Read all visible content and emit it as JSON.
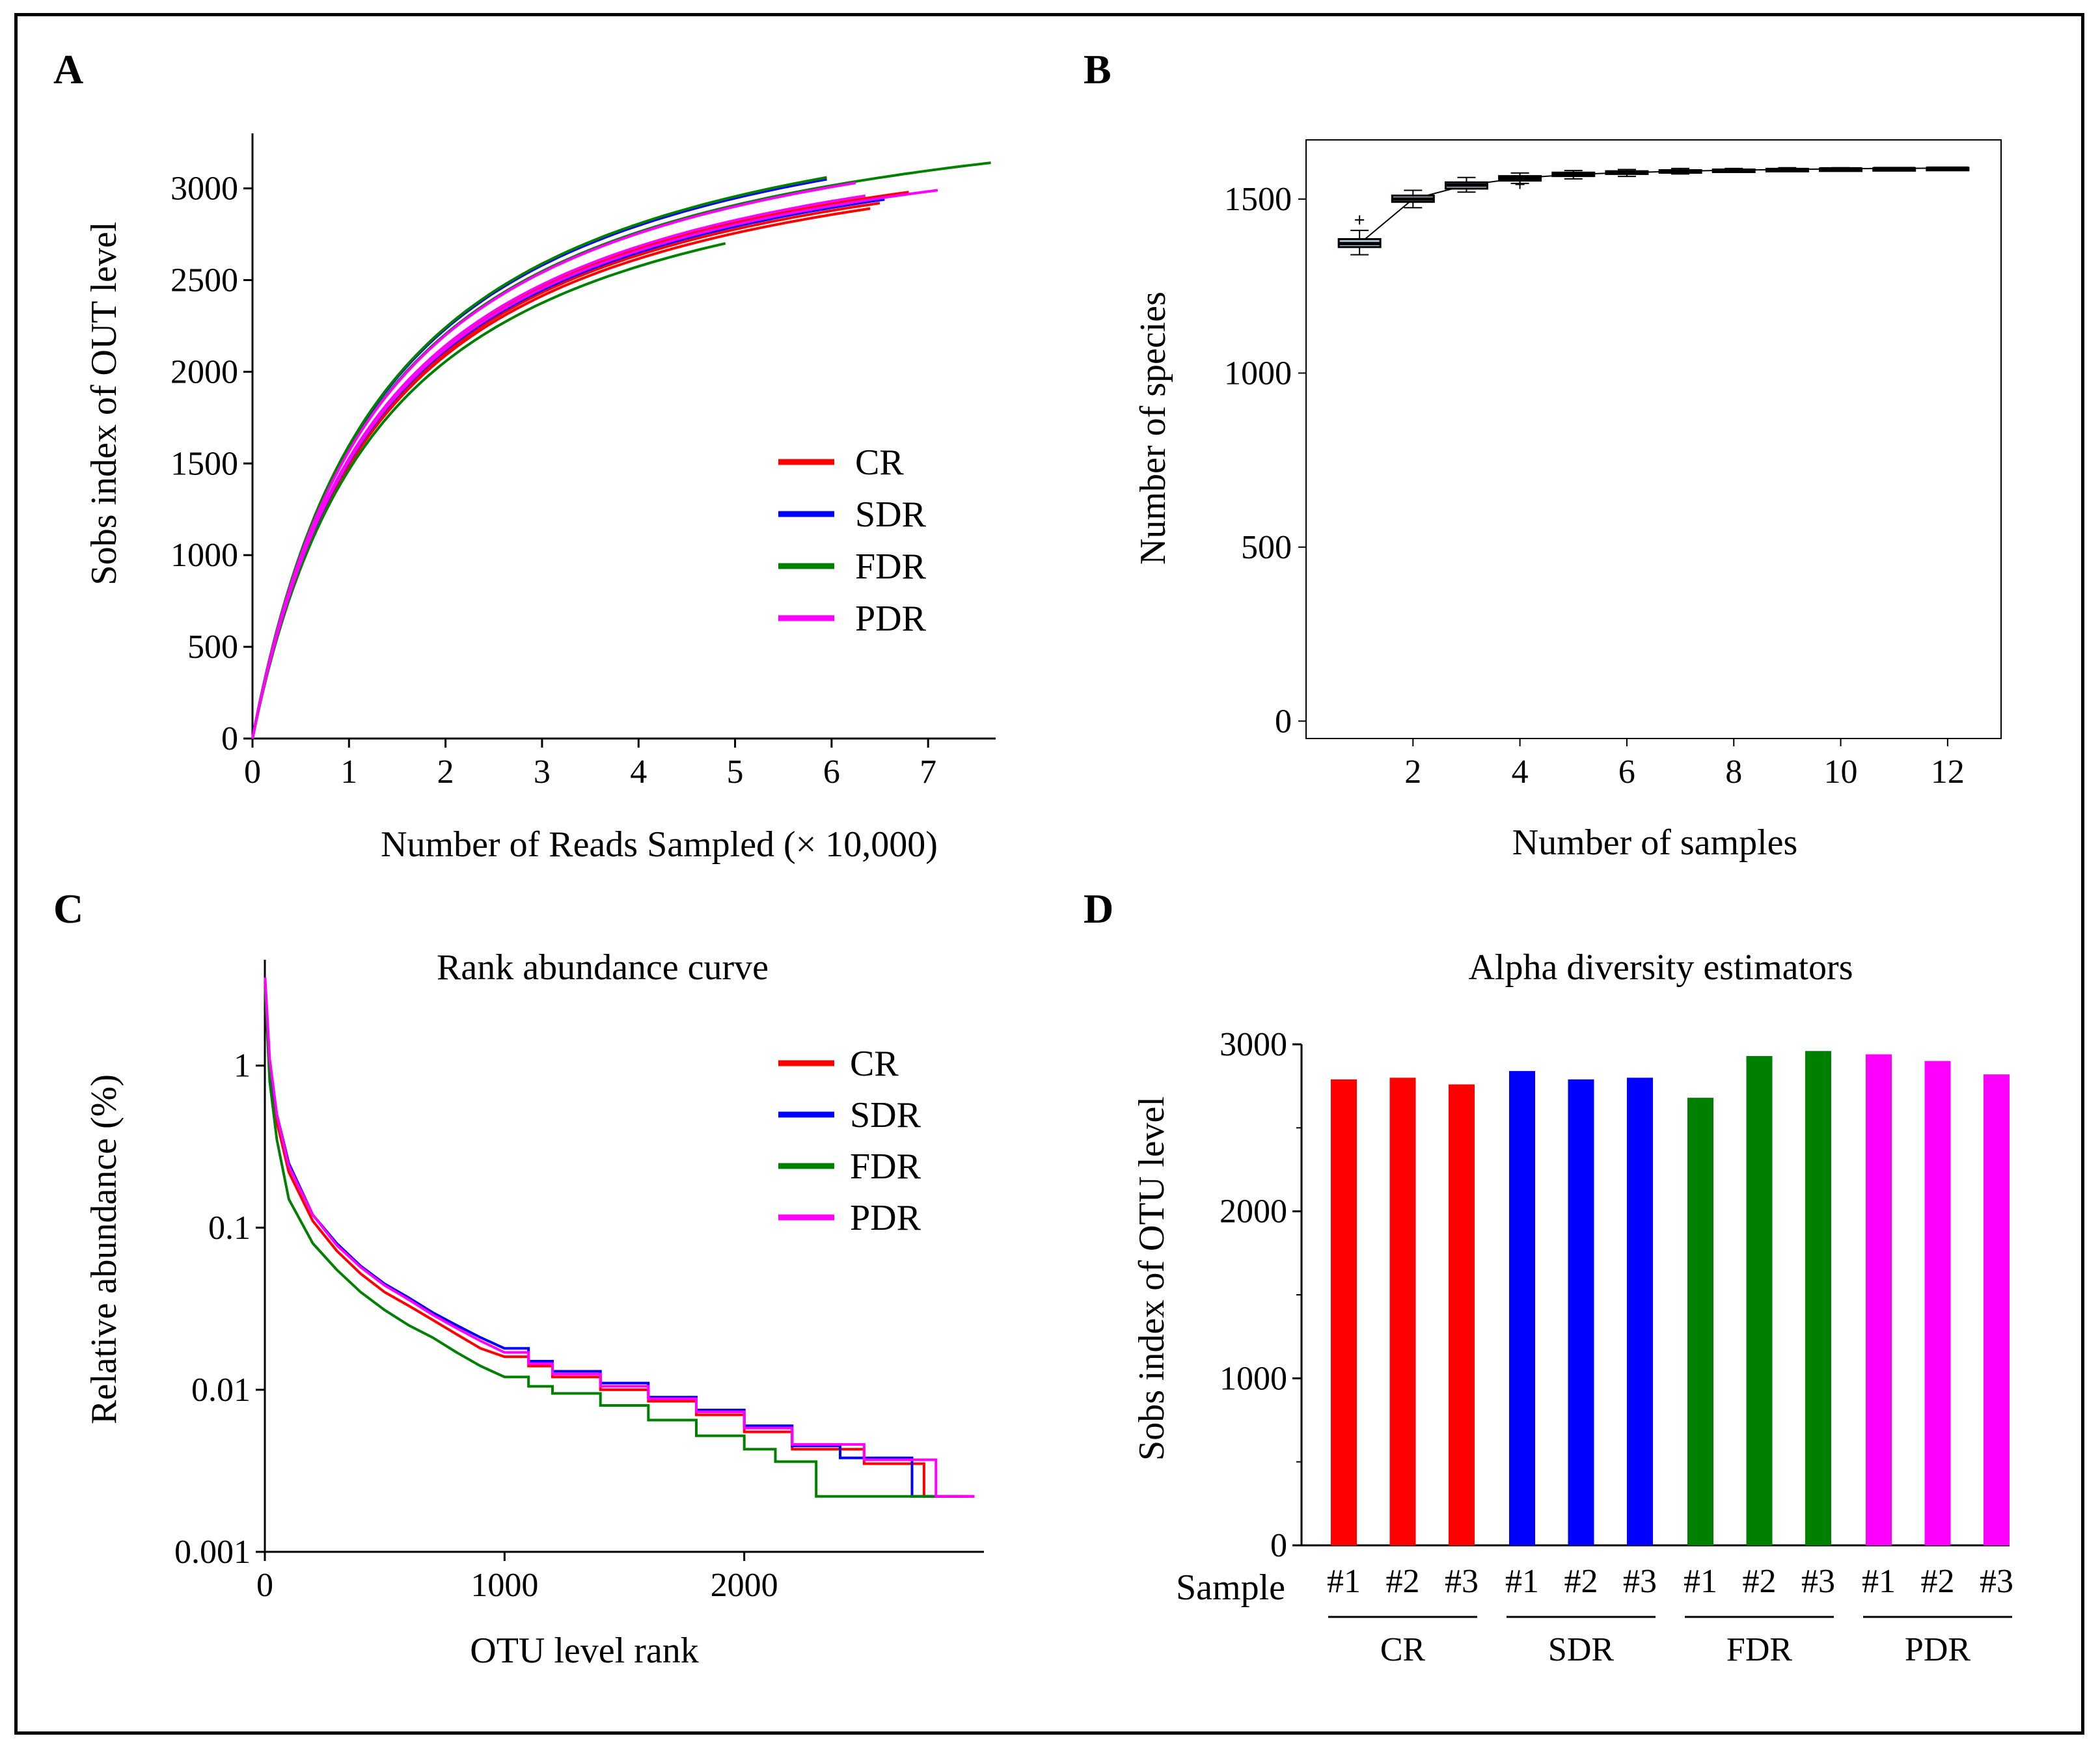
{
  "colors": {
    "CR": "#ff0000",
    "SDR": "#0000ff",
    "FDR": "#008000",
    "PDR": "#ff00ff",
    "box": "#a9c4dc"
  },
  "panels": {
    "A": {
      "letter": "A"
    },
    "B": {
      "letter": "B"
    },
    "C": {
      "letter": "C"
    },
    "D": {
      "letter": "D"
    }
  },
  "chart_data": [
    {
      "id": "A",
      "type": "line",
      "title": "",
      "xlabel": "Number of Reads Sampled (× 10,000)",
      "ylabel": "Sobs index of OUT level",
      "xlim": [
        0,
        7.7
      ],
      "ylim": [
        0,
        3300
      ],
      "xticks": [
        0,
        1,
        2,
        3,
        4,
        5,
        6,
        7
      ],
      "yticks": [
        0,
        500,
        1000,
        1500,
        2000,
        2500,
        3000
      ],
      "legend": [
        "CR",
        "SDR",
        "FDR",
        "PDR"
      ],
      "legend_position": "center-right",
      "series": [
        {
          "name": "CR",
          "group": "CR",
          "end_x": 6.4,
          "end_y": 2890
        },
        {
          "name": "CR",
          "group": "CR",
          "end_x": 6.5,
          "end_y": 2920
        },
        {
          "name": "CR",
          "group": "CR",
          "end_x": 6.8,
          "end_y": 2980
        },
        {
          "name": "SDR",
          "group": "SDR",
          "end_x": 6.4,
          "end_y": 2930
        },
        {
          "name": "SDR",
          "group": "SDR",
          "end_x": 6.55,
          "end_y": 2940
        },
        {
          "name": "SDR",
          "group": "SDR",
          "end_x": 5.95,
          "end_y": 3050
        },
        {
          "name": "FDR",
          "group": "FDR",
          "end_x": 4.9,
          "end_y": 2700
        },
        {
          "name": "FDR",
          "group": "FDR",
          "end_x": 7.65,
          "end_y": 3140
        },
        {
          "name": "FDR",
          "group": "FDR",
          "end_x": 5.95,
          "end_y": 3060
        },
        {
          "name": "PDR",
          "group": "PDR",
          "end_x": 7.1,
          "end_y": 2990
        },
        {
          "name": "PDR",
          "group": "PDR",
          "end_x": 6.25,
          "end_y": 3030
        },
        {
          "name": "PDR",
          "group": "PDR",
          "end_x": 6.35,
          "end_y": 2960
        }
      ]
    },
    {
      "id": "B",
      "type": "box",
      "title": "",
      "xlabel": "Number of samples",
      "ylabel": "Number of species",
      "xlim": [
        0,
        13
      ],
      "ylim": [
        -50,
        1670
      ],
      "xticks": [
        2,
        4,
        6,
        8,
        10,
        12
      ],
      "yticks": [
        0,
        500,
        1000,
        1500
      ],
      "boxes": [
        {
          "n": 1,
          "min": 1340,
          "q1": 1362,
          "median": 1372,
          "q3": 1385,
          "max": 1410,
          "outliers": [
            1440
          ]
        },
        {
          "n": 2,
          "min": 1475,
          "q1": 1492,
          "median": 1500,
          "q3": 1510,
          "max": 1525,
          "outliers": []
        },
        {
          "n": 3,
          "min": 1520,
          "q1": 1530,
          "median": 1540,
          "q3": 1548,
          "max": 1562,
          "outliers": []
        },
        {
          "n": 4,
          "min": 1545,
          "q1": 1553,
          "median": 1560,
          "q3": 1566,
          "max": 1575,
          "outliers": [
            1542
          ]
        },
        {
          "n": 5,
          "min": 1558,
          "q1": 1566,
          "median": 1571,
          "q3": 1576,
          "max": 1582,
          "outliers": []
        },
        {
          "n": 6,
          "min": 1565,
          "q1": 1572,
          "median": 1576,
          "q3": 1580,
          "max": 1585,
          "outliers": []
        },
        {
          "n": 7,
          "min": 1572,
          "q1": 1577,
          "median": 1580,
          "q3": 1583,
          "max": 1588,
          "outliers": []
        },
        {
          "n": 8,
          "min": 1578,
          "q1": 1581,
          "median": 1583,
          "q3": 1585,
          "max": 1588,
          "outliers": []
        },
        {
          "n": 9,
          "min": 1581,
          "q1": 1583,
          "median": 1585,
          "q3": 1587,
          "max": 1590,
          "outliers": []
        },
        {
          "n": 10,
          "min": 1584,
          "q1": 1586,
          "median": 1587,
          "q3": 1588,
          "max": 1590,
          "outliers": []
        },
        {
          "n": 11,
          "min": 1586,
          "q1": 1587,
          "median": 1588,
          "q3": 1589,
          "max": 1590,
          "outliers": []
        },
        {
          "n": 12,
          "min": 1588,
          "q1": 1588,
          "median": 1589,
          "q3": 1590,
          "max": 1590,
          "outliers": []
        }
      ]
    },
    {
      "id": "C",
      "type": "line",
      "title": "Rank abundance curve",
      "xlabel": "OTU level rank",
      "ylabel": "Relative abundance (%)",
      "yscale": "log",
      "xlim": [
        0,
        3000
      ],
      "ylim": [
        0.001,
        4.5
      ],
      "xticks": [
        0,
        1000,
        2000
      ],
      "yticks": [
        0.001,
        0.01,
        0.1,
        1
      ],
      "ytick_labels": [
        "0.001",
        "0.01",
        "0.1",
        "1"
      ],
      "legend": [
        "CR",
        "SDR",
        "FDR",
        "PDR"
      ],
      "legend_position": "top-right",
      "series": [
        {
          "name": "CR",
          "points": [
            [
              1,
              3.2
            ],
            [
              20,
              1.0
            ],
            [
              50,
              0.45
            ],
            [
              100,
              0.22
            ],
            [
              200,
              0.11
            ],
            [
              300,
              0.072
            ],
            [
              400,
              0.052
            ],
            [
              500,
              0.04
            ],
            [
              600,
              0.033
            ],
            [
              700,
              0.027
            ],
            [
              800,
              0.022
            ],
            [
              900,
              0.018
            ],
            [
              1000,
              0.016
            ],
            [
              1100,
              0.014
            ],
            [
              1200,
              0.012
            ],
            [
              1400,
              0.01
            ],
            [
              1600,
              0.0085
            ],
            [
              1800,
              0.007
            ],
            [
              2000,
              0.0055
            ],
            [
              2200,
              0.0043
            ],
            [
              2500,
              0.0035
            ],
            [
              2750,
              0.0022
            ],
            [
              2940,
              0.0022
            ]
          ]
        },
        {
          "name": "SDR",
          "points": [
            [
              1,
              3.0
            ],
            [
              20,
              1.0
            ],
            [
              50,
              0.5
            ],
            [
              100,
              0.25
            ],
            [
              200,
              0.12
            ],
            [
              300,
              0.08
            ],
            [
              400,
              0.058
            ],
            [
              500,
              0.045
            ],
            [
              600,
              0.037
            ],
            [
              700,
              0.03
            ],
            [
              800,
              0.025
            ],
            [
              900,
              0.021
            ],
            [
              1000,
              0.018
            ],
            [
              1100,
              0.015
            ],
            [
              1200,
              0.013
            ],
            [
              1400,
              0.011
            ],
            [
              1600,
              0.009
            ],
            [
              1800,
              0.0075
            ],
            [
              2000,
              0.006
            ],
            [
              2200,
              0.0045
            ],
            [
              2400,
              0.0038
            ],
            [
              2700,
              0.0022
            ],
            [
              2960,
              0.0022
            ]
          ]
        },
        {
          "name": "FDR",
          "points": [
            [
              1,
              3.0
            ],
            [
              20,
              0.8
            ],
            [
              50,
              0.35
            ],
            [
              100,
              0.15
            ],
            [
              200,
              0.08
            ],
            [
              300,
              0.055
            ],
            [
              400,
              0.04
            ],
            [
              500,
              0.031
            ],
            [
              600,
              0.025
            ],
            [
              700,
              0.021
            ],
            [
              800,
              0.017
            ],
            [
              900,
              0.014
            ],
            [
              1000,
              0.012
            ],
            [
              1100,
              0.0105
            ],
            [
              1200,
              0.0095
            ],
            [
              1400,
              0.008
            ],
            [
              1600,
              0.0065
            ],
            [
              1800,
              0.0052
            ],
            [
              2000,
              0.0043
            ],
            [
              2130,
              0.0036
            ],
            [
              2300,
              0.0022
            ],
            [
              2900,
              0.0022
            ]
          ]
        },
        {
          "name": "PDR",
          "points": [
            [
              1,
              3.5
            ],
            [
              20,
              1.1
            ],
            [
              50,
              0.5
            ],
            [
              100,
              0.24
            ],
            [
              200,
              0.12
            ],
            [
              300,
              0.078
            ],
            [
              400,
              0.057
            ],
            [
              500,
              0.044
            ],
            [
              600,
              0.036
            ],
            [
              700,
              0.029
            ],
            [
              800,
              0.024
            ],
            [
              900,
              0.02
            ],
            [
              1000,
              0.017
            ],
            [
              1100,
              0.0145
            ],
            [
              1200,
              0.0125
            ],
            [
              1400,
              0.0105
            ],
            [
              1600,
              0.0088
            ],
            [
              1800,
              0.0073
            ],
            [
              2000,
              0.0058
            ],
            [
              2200,
              0.0046
            ],
            [
              2500,
              0.0037
            ],
            [
              2800,
              0.0022
            ],
            [
              2960,
              0.0022
            ]
          ]
        }
      ]
    },
    {
      "id": "D",
      "type": "bar",
      "title": "Alpha diversity estimators",
      "ylabel": "Sobs index of OTU level",
      "xlabel": "Sample",
      "ylim": [
        0,
        3000
      ],
      "yticks": [
        0,
        1000,
        2000,
        3000
      ],
      "groups": [
        "CR",
        "SDR",
        "FDR",
        "PDR"
      ],
      "categories": [
        "#1",
        "#2",
        "#3",
        "#1",
        "#2",
        "#3",
        "#1",
        "#2",
        "#3",
        "#1",
        "#2",
        "#3"
      ],
      "bar_groups": [
        "CR",
        "CR",
        "CR",
        "SDR",
        "SDR",
        "SDR",
        "FDR",
        "FDR",
        "FDR",
        "PDR",
        "PDR",
        "PDR"
      ],
      "values": [
        2790,
        2800,
        2760,
        2840,
        2790,
        2800,
        2680,
        2930,
        2960,
        2940,
        2900,
        2820
      ]
    }
  ]
}
